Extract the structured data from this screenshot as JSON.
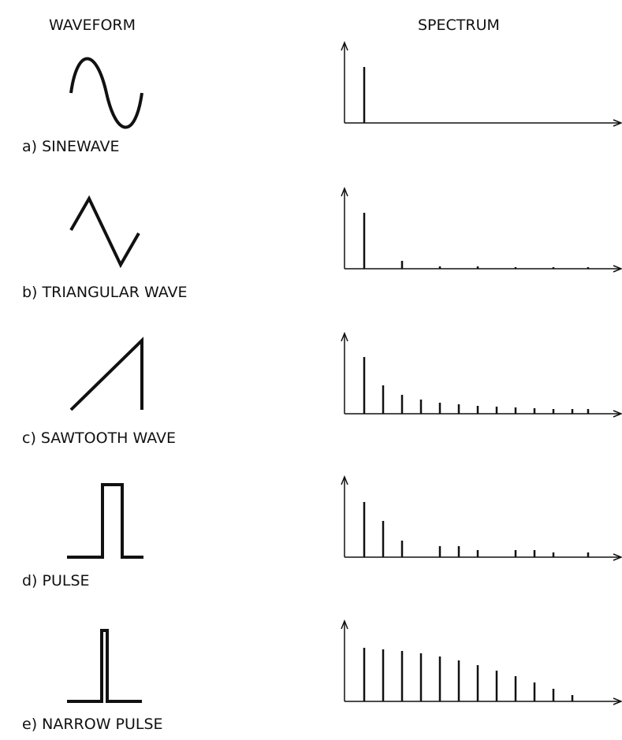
{
  "headers": {
    "waveform": "WAVEFORM",
    "spectrum": "SPECTRUM"
  },
  "rows": [
    {
      "label": "a) SINEWAVE",
      "spectrum": [
        71
      ]
    },
    {
      "label": "b) TRIANGULAR WAVE",
      "spectrum": [
        71,
        0,
        10,
        0,
        3,
        0,
        3,
        0,
        2,
        0,
        2,
        0,
        2
      ]
    },
    {
      "label": "c) SAWTOOTH WAVE",
      "spectrum": [
        72,
        36,
        24,
        18,
        14,
        12,
        10,
        9,
        8,
        7,
        6,
        6,
        6
      ]
    },
    {
      "label": "d) PULSE",
      "spectrum": [
        70,
        46,
        21,
        0,
        14,
        14,
        9,
        0,
        9,
        9,
        6,
        0,
        6
      ]
    },
    {
      "label": "e) NARROW PULSE",
      "spectrum": [
        68,
        66,
        64,
        61,
        57,
        52,
        46,
        39,
        32,
        24,
        16,
        8
      ]
    }
  ]
}
